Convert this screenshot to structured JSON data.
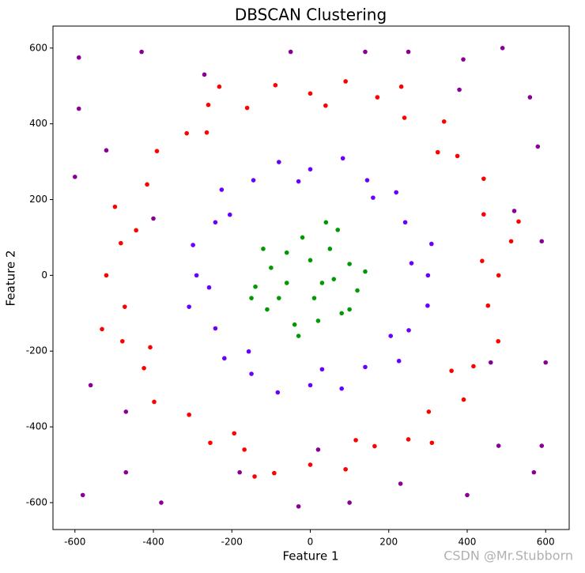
{
  "chart_data": {
    "type": "scatter",
    "title": "DBSCAN Clustering",
    "xlabel": "Feature 1",
    "ylabel": "Feature 2",
    "watermark": "CSDN @Mr.Stubborn",
    "xlim": [
      -656,
      660
    ],
    "ylim": [
      -671,
      658
    ],
    "xticks": [
      -600,
      -400,
      -200,
      0,
      200,
      400,
      600
    ],
    "yticks": [
      -600,
      -400,
      -200,
      0,
      200,
      400,
      600
    ],
    "series": [
      {
        "color": "#ff0000",
        "x": [
          480,
          512,
          442,
          442,
          375,
          341,
          240,
          171,
          90,
          0,
          -89,
          -161,
          -260,
          -315,
          -391,
          -416,
          -498,
          -483,
          -520,
          -473,
          -479,
          -424,
          -398,
          -309,
          -255,
          -168,
          -92,
          0,
          90,
          164,
          250,
          302,
          391,
          416,
          479,
          453,
          438,
          325,
          39,
          -264,
          -444,
          -408,
          -194,
          116,
          360,
          531,
          232,
          -232,
          -531,
          -142,
          310
        ],
        "y": [
          0,
          90,
          161,
          255,
          315,
          406,
          416,
          470,
          512,
          480,
          502,
          442,
          450,
          375,
          328,
          240,
          181,
          85,
          0,
          -83,
          -174,
          -245,
          -334,
          -368,
          -442,
          -460,
          -522,
          -500,
          -512,
          -451,
          -433,
          -360,
          -328,
          -240,
          -174,
          -80,
          38,
          325,
          448,
          377,
          119,
          -190,
          -417,
          -435,
          -252,
          142,
          498,
          498,
          -142,
          -531,
          -442
        ]
      },
      {
        "color": "#6a00ff",
        "x": [
          300,
          309,
          242,
          219,
          145,
          83,
          0,
          -80,
          -145,
          -226,
          -242,
          -299,
          -290,
          -309,
          -242,
          -219,
          -150,
          -83,
          0,
          80,
          140,
          226,
          251,
          299,
          258,
          160,
          -30,
          -205,
          -258,
          -157,
          30,
          205
        ],
        "y": [
          0,
          83,
          140,
          219,
          251,
          309,
          280,
          299,
          251,
          226,
          140,
          80,
          0,
          -83,
          -140,
          -219,
          -260,
          -309,
          -290,
          -299,
          -242,
          -226,
          -145,
          -80,
          32,
          205,
          248,
          160,
          -32,
          -201,
          -248,
          -160
        ]
      },
      {
        "color": "#009a00",
        "x": [
          -100,
          -60,
          0,
          50,
          100,
          120,
          80,
          20,
          -40,
          -110,
          -140,
          -60,
          30,
          -20,
          70,
          -120,
          10,
          -80,
          100,
          40,
          -30,
          140,
          -150,
          60
        ],
        "y": [
          20,
          60,
          40,
          70,
          30,
          -40,
          -100,
          -120,
          -130,
          -90,
          -30,
          -20,
          -20,
          100,
          120,
          70,
          -60,
          -60,
          -90,
          140,
          -160,
          10,
          -60,
          -10
        ]
      },
      {
        "color": "#8b0094",
        "x": [
          -590,
          -430,
          -270,
          -50,
          140,
          250,
          390,
          490,
          560,
          580,
          590,
          600,
          590,
          570,
          400,
          -580,
          -590,
          -600,
          -560,
          -470,
          -380,
          -180,
          100,
          230,
          -30,
          480,
          -520,
          -400,
          520,
          20,
          -470,
          380,
          460
        ],
        "y": [
          575,
          590,
          530,
          590,
          590,
          590,
          570,
          600,
          470,
          340,
          90,
          -230,
          -450,
          -520,
          -580,
          -580,
          440,
          260,
          -290,
          -520,
          -600,
          -520,
          -600,
          -550,
          -610,
          -450,
          330,
          150,
          170,
          -460,
          -360,
          490,
          -230
        ]
      }
    ]
  }
}
